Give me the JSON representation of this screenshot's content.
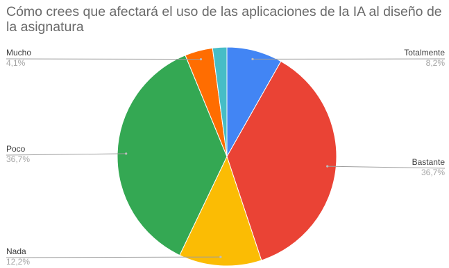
{
  "chart_data": {
    "type": "pie",
    "title": "Cómo crees que afectará el uso de las aplicaciones de la IA al diseño de la asignatura",
    "slices": [
      {
        "label": "Totalmente",
        "value": 8.2,
        "value_label": "8,2%",
        "color": "#4285f4"
      },
      {
        "label": "Bastante",
        "value": 36.7,
        "value_label": "36,7%",
        "color": "#ea4335"
      },
      {
        "label": "Nada",
        "value": 12.2,
        "value_label": "12,2%",
        "color": "#fbbc04"
      },
      {
        "label": "Poco",
        "value": 36.7,
        "value_label": "36,7%",
        "color": "#34a853"
      },
      {
        "label": "Mucho",
        "value": 4.1,
        "value_label": "4,1%",
        "color": "#ff6d01"
      },
      {
        "label": "",
        "value": 2.1,
        "value_label": "",
        "color": "#46bdc6"
      }
    ],
    "start_angle_deg": 0,
    "direction": "clockwise",
    "legend": "none",
    "label_placement": "outside"
  }
}
